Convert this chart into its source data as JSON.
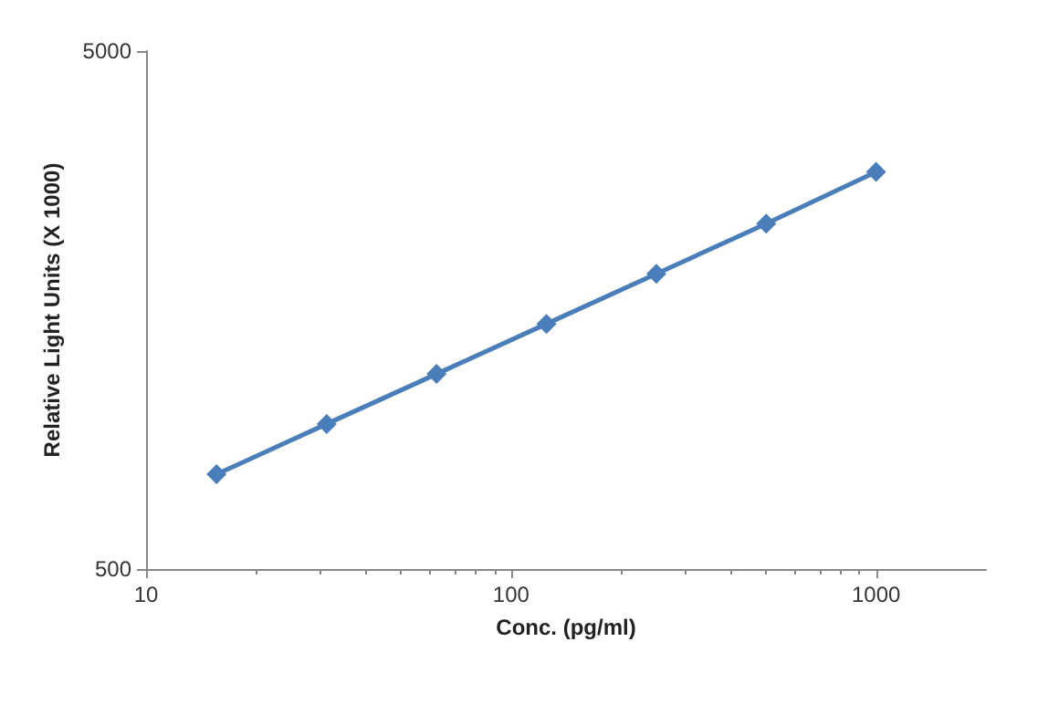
{
  "chart_data": {
    "type": "line",
    "xlabel": "Conc. (pg/ml)",
    "ylabel": "Relative Light Units (X 1000)",
    "x": [
      15.6,
      31.25,
      62.5,
      125,
      250,
      500,
      1000
    ],
    "series": [
      {
        "color": "#4a7ebb",
        "values": [
          762,
          953,
          1190,
          1487,
          1858,
          2321,
          2922
        ]
      }
    ],
    "log": "xy",
    "xlim": [
      10,
      2000
    ],
    "ylim": [
      500,
      5000
    ],
    "xticks": [
      10,
      100,
      1000
    ],
    "yticks": [
      500,
      5000
    ],
    "grid": false,
    "marker": "diamond",
    "line_style": "solid"
  }
}
